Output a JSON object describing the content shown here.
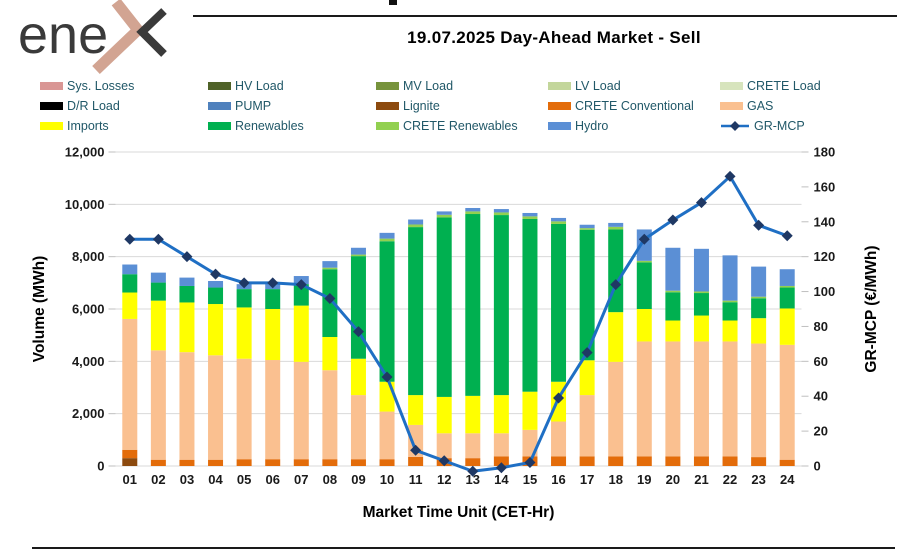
{
  "header": {
    "logo_text": "enex",
    "title": "19.07.2025  Day-Ahead Market - Sell"
  },
  "legend": {
    "text_color": "#215868",
    "items": [
      {
        "label": "Sys. Losses",
        "color": "#d99694",
        "type": "swatch"
      },
      {
        "label": "HV Load",
        "color": "#4f6228",
        "type": "swatch"
      },
      {
        "label": "MV Load",
        "color": "#77933c",
        "type": "swatch"
      },
      {
        "label": "LV Load",
        "color": "#c3d69b",
        "type": "swatch"
      },
      {
        "label": "CRETE Load",
        "color": "#d7e4bd",
        "type": "swatch"
      },
      {
        "label": "D/R Load",
        "color": "#000000",
        "type": "swatch"
      },
      {
        "label": "PUMP",
        "color": "#4f81bd",
        "type": "swatch"
      },
      {
        "label": "Lignite",
        "color": "#8c4a0e",
        "type": "swatch"
      },
      {
        "label": "CRETE Conventional",
        "color": "#e36c0a",
        "type": "swatch"
      },
      {
        "label": "GAS",
        "color": "#fac090",
        "type": "swatch"
      },
      {
        "label": "Imports",
        "color": "#ffff00",
        "type": "swatch"
      },
      {
        "label": "Renewables",
        "color": "#00b050",
        "type": "swatch"
      },
      {
        "label": "CRETE Renewables",
        "color": "#92d050",
        "type": "swatch"
      },
      {
        "label": "Hydro",
        "color": "#5b8fd5",
        "type": "swatch"
      },
      {
        "label": "GR-MCP",
        "color": "#1f6fc4",
        "marker_color": "#1f3864",
        "type": "line"
      }
    ]
  },
  "chart_data": {
    "type": "stacked-bar+line",
    "title": "19.07.2025  Day-Ahead Market - Sell",
    "xlabel": "Market Time Unit (CET-Hr)",
    "categories": [
      "01",
      "02",
      "03",
      "04",
      "05",
      "06",
      "07",
      "08",
      "09",
      "10",
      "11",
      "12",
      "13",
      "14",
      "15",
      "16",
      "17",
      "18",
      "19",
      "20",
      "21",
      "22",
      "23",
      "24"
    ],
    "series": [
      {
        "name": "Lignite",
        "color": "#8c4a0e",
        "values": [
          300,
          0,
          0,
          0,
          0,
          0,
          0,
          0,
          0,
          0,
          0,
          0,
          0,
          0,
          0,
          0,
          0,
          0,
          0,
          0,
          0,
          0,
          0,
          0
        ]
      },
      {
        "name": "CRETE Conventional",
        "color": "#e36c0a",
        "values": [
          320,
          240,
          240,
          240,
          260,
          260,
          260,
          260,
          260,
          260,
          350,
          300,
          300,
          370,
          370,
          370,
          370,
          370,
          370,
          370,
          370,
          370,
          340,
          240
        ]
      },
      {
        "name": "GAS",
        "color": "#fac090",
        "values": [
          5000,
          4180,
          4110,
          3990,
          3840,
          3790,
          3720,
          3400,
          2450,
          1820,
          1220,
          950,
          950,
          880,
          1010,
          1330,
          2340,
          3610,
          4390,
          4390,
          4390,
          4390,
          4340,
          4390
        ]
      },
      {
        "name": "Imports",
        "color": "#ffff00",
        "values": [
          1010,
          1900,
          1900,
          1960,
          1960,
          1950,
          2150,
          1270,
          1390,
          1140,
          1140,
          1390,
          1430,
          1460,
          1460,
          1520,
          1330,
          1900,
          1240,
          800,
          990,
          800,
          970,
          1390
        ]
      },
      {
        "name": "Renewables",
        "color": "#00b050",
        "values": [
          700,
          690,
          630,
          630,
          700,
          760,
          820,
          2590,
          3920,
          5370,
          6420,
          6860,
          6950,
          6880,
          6600,
          6030,
          4990,
          3160,
          1780,
          1080,
          860,
          700,
          760,
          800
        ]
      },
      {
        "name": "CRETE Renewables",
        "color": "#92d050",
        "values": [
          0,
          0,
          0,
          0,
          0,
          0,
          0,
          60,
          60,
          100,
          100,
          100,
          100,
          100,
          100,
          100,
          60,
          100,
          60,
          60,
          60,
          60,
          60,
          60
        ]
      },
      {
        "name": "Hydro",
        "color": "#5b8fd5",
        "values": [
          370,
          380,
          320,
          250,
          190,
          190,
          310,
          250,
          260,
          220,
          190,
          130,
          130,
          130,
          130,
          130,
          130,
          150,
          1200,
          1640,
          1630,
          1730,
          1150,
          640
        ]
      }
    ],
    "line": {
      "name": "GR-MCP",
      "color": "#1f6fc4",
      "marker_color": "#1f3864",
      "values": [
        130,
        130,
        120,
        110,
        105,
        105,
        104,
        96,
        77,
        51,
        9,
        3,
        -3,
        -1,
        2,
        39,
        65,
        104,
        130,
        141,
        151,
        166,
        138,
        132
      ]
    },
    "y_left": {
      "label": "Volume (MWh)",
      "min": 0,
      "max": 12000,
      "step": 2000,
      "tick_labels": [
        "0",
        "2,000",
        "4,000",
        "6,000",
        "8,000",
        "10,000",
        "12,000"
      ]
    },
    "y_right": {
      "label": "GR-MCP (€/MWh)",
      "min": 0,
      "max": 180,
      "step": 20,
      "tick_labels": [
        "0",
        "20",
        "40",
        "60",
        "80",
        "100",
        "120",
        "140",
        "160",
        "180"
      ]
    },
    "grid": true,
    "grid_color": "#d9d9d9",
    "tick_text_color": "#1a1a1a",
    "legend_position": "top"
  }
}
